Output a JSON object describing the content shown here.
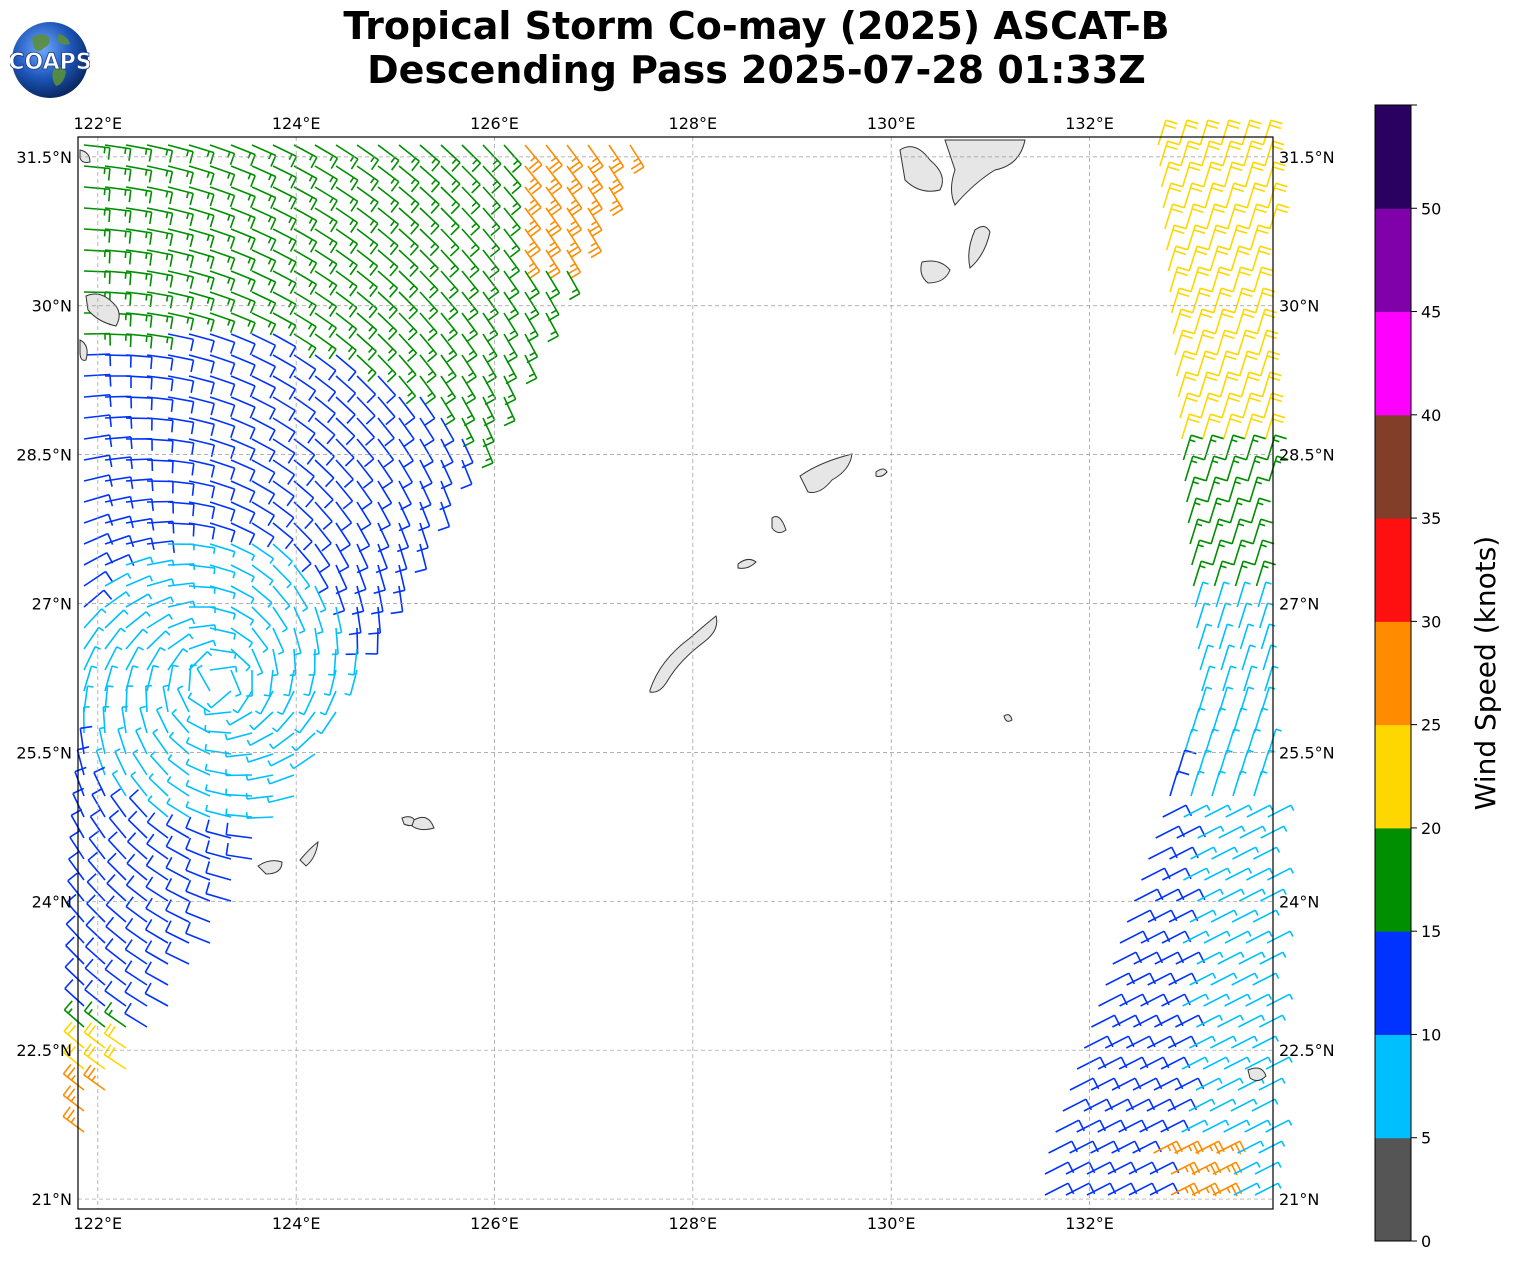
{
  "title": {
    "line1": "Tropical Storm Co-may (2025) ASCAT-B",
    "line2": "Descending Pass 2025-07-28 01:33Z"
  },
  "logo": {
    "text": "COAPS",
    "icon": "globe-logo"
  },
  "map": {
    "lon_range": [
      121.8,
      133.85
    ],
    "lat_range": [
      20.9,
      31.7
    ],
    "lon_ticks": [
      122,
      124,
      126,
      128,
      130,
      132
    ],
    "lon_tick_labels": [
      "122°E",
      "124°E",
      "126°E",
      "128°E",
      "130°E",
      "132°E"
    ],
    "lat_ticks": [
      21,
      22.5,
      24,
      25.5,
      27,
      28.5,
      30,
      31.5
    ],
    "lat_tick_labels": [
      "21°N",
      "22.5°N",
      "24°N",
      "25.5°N",
      "27°N",
      "28.5°N",
      "30°N",
      "31.5°N"
    ],
    "gridlines": true
  },
  "colorbar": {
    "label": "Wind Speed (knots)",
    "tick_labels": [
      "0",
      "5",
      "10",
      "15",
      "20",
      "25",
      "30",
      "35",
      "40",
      "45",
      "50"
    ],
    "bins": [
      {
        "min": 0,
        "max": 5,
        "color": "#555555"
      },
      {
        "min": 5,
        "max": 10,
        "color": "#00bfff"
      },
      {
        "min": 10,
        "max": 15,
        "color": "#0033ff"
      },
      {
        "min": 15,
        "max": 20,
        "color": "#008f00"
      },
      {
        "min": 20,
        "max": 25,
        "color": "#ffd700"
      },
      {
        "min": 25,
        "max": 30,
        "color": "#ff8c00"
      },
      {
        "min": 30,
        "max": 35,
        "color": "#ff1010"
      },
      {
        "min": 35,
        "max": 40,
        "color": "#823e29"
      },
      {
        "min": 40,
        "max": 45,
        "color": "#ff00ff"
      },
      {
        "min": 45,
        "max": 50,
        "color": "#8000aa"
      },
      {
        "min": 50,
        "max": 55,
        "color": "#2a0060"
      }
    ]
  }
}
